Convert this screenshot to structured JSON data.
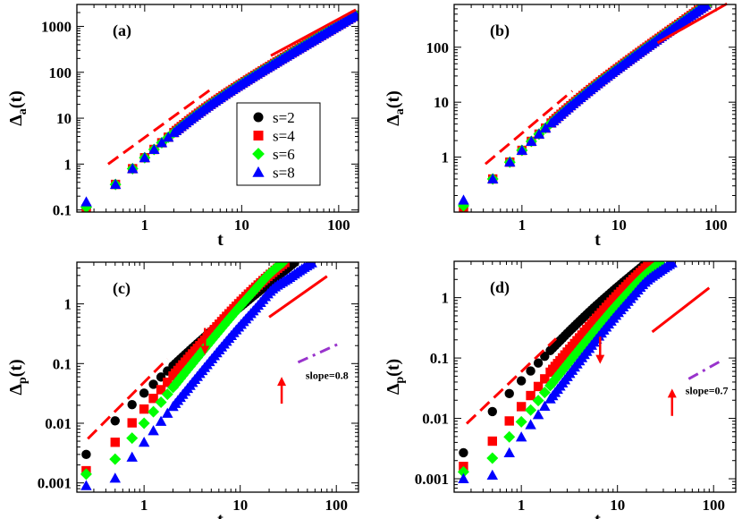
{
  "figure": {
    "legend": [
      {
        "label": "s=2",
        "color": "#000000",
        "marker": "circle"
      },
      {
        "label": "s=4",
        "color": "#ff0000",
        "marker": "square"
      },
      {
        "label": "s=6",
        "color": "#00ff00",
        "marker": "diamond"
      },
      {
        "label": "s=8",
        "color": "#0000ff",
        "marker": "triangle"
      }
    ],
    "guide_color": "#ff0000",
    "slope_color": "#9933cc"
  },
  "chart_data": [
    {
      "type": "scatter",
      "panel_label": "(a)",
      "title": "",
      "xlabel": "t",
      "ylabel_main": "Δ",
      "ylabel_sub": "a",
      "ylabel_tail": "(t)",
      "xscale": "log",
      "yscale": "log",
      "xlim": [
        0.2,
        160
      ],
      "ylim": [
        0.09,
        3000
      ],
      "xticks": [
        1,
        10,
        100
      ],
      "xtick_labels": [
        "1",
        "10",
        "100"
      ],
      "yticks": [
        0.1,
        1,
        10,
        100,
        1000
      ],
      "ytick_labels": [
        "0.1",
        "1",
        "10",
        "100",
        "1000"
      ],
      "legend_position": "center-right",
      "series": [
        {
          "name": "s=2",
          "gen": "act",
          "a": 1.48,
          "b": 2.0,
          "tc": 3.0,
          "offset": 0.0
        },
        {
          "name": "s=4",
          "gen": "act",
          "a": 1.48,
          "b": 2.0,
          "tc": 3.0,
          "offset": 0.0
        },
        {
          "name": "s=6",
          "gen": "act",
          "a": 1.48,
          "b": 2.0,
          "tc": 3.0,
          "offset": 0.0
        },
        {
          "name": "s=8",
          "gen": "act",
          "a": 1.48,
          "b": 2.0,
          "tc": 3.0,
          "offset": 0.0
        }
      ],
      "first_points": [
        0.105,
        0.105,
        0.115,
        0.15
      ],
      "guides": [
        {
          "kind": "dashed",
          "x": [
            0.42,
            5.0
          ],
          "y": [
            1.0,
            45
          ]
        },
        {
          "kind": "solid",
          "x": [
            20,
            150
          ],
          "y": [
            230,
            2300
          ]
        }
      ]
    },
    {
      "type": "scatter",
      "panel_label": "(b)",
      "title": "",
      "xlabel": "t",
      "ylabel_main": "Δ",
      "ylabel_sub": "a",
      "ylabel_tail": "(t)",
      "xscale": "log",
      "yscale": "log",
      "xlim": [
        0.2,
        160
      ],
      "ylim": [
        0.1,
        600
      ],
      "xticks": [
        1,
        10,
        100
      ],
      "xtick_labels": [
        "1",
        "10",
        "100"
      ],
      "yticks": [
        1,
        10,
        100
      ],
      "ytick_labels": [
        "1",
        "10",
        "100"
      ],
      "series": [
        {
          "name": "s=2",
          "gen": "act",
          "a": 1.4,
          "b": 1.78,
          "tc": 3.0,
          "offset": 0.0
        },
        {
          "name": "s=4",
          "gen": "act",
          "a": 1.4,
          "b": 1.78,
          "tc": 3.0,
          "offset": 0.0
        },
        {
          "name": "s=6",
          "gen": "act",
          "a": 1.4,
          "b": 1.78,
          "tc": 3.0,
          "offset": 0.0
        },
        {
          "name": "s=8",
          "gen": "act",
          "a": 1.4,
          "b": 1.78,
          "tc": 3.0,
          "offset": 0.0
        }
      ],
      "first_points": [
        0.12,
        0.12,
        0.13,
        0.165
      ],
      "guides": [
        {
          "kind": "dashed",
          "x": [
            0.42,
            3.3
          ],
          "y": [
            0.75,
            16
          ]
        },
        {
          "kind": "solid",
          "x": [
            25,
            130
          ],
          "y": [
            120,
            620
          ]
        }
      ]
    },
    {
      "type": "scatter",
      "panel_label": "(c)",
      "title": "",
      "xlabel": "t",
      "ylabel_main": "Δ",
      "ylabel_sub": "p",
      "ylabel_tail": "(t)",
      "xscale": "log",
      "yscale": "log",
      "xlim": [
        0.2,
        170
      ],
      "ylim": [
        0.0007,
        5
      ],
      "xticks": [
        1,
        10,
        100
      ],
      "xtick_labels": [
        "1",
        "10",
        "100"
      ],
      "yticks": [
        0.001,
        0.01,
        0.1,
        1
      ],
      "ytick_labels": [
        "0.001",
        "0.01",
        "0.1",
        "1"
      ],
      "series": [
        {
          "name": "s=2",
          "gen": "pass",
          "t0": 0.25,
          "v0": 0.003,
          "v1": 0.011,
          "a1": 1.55,
          "a2": 1.3,
          "tc": 4.0,
          "bump": 0
        },
        {
          "name": "s=4",
          "gen": "pass",
          "t0": 0.25,
          "v0": 0.0016,
          "v1": 0.0048,
          "a1": 1.85,
          "a2": 1.1,
          "tc": 15.0,
          "bump": 0
        },
        {
          "name": "s=6",
          "gen": "pass",
          "t0": 0.25,
          "v0": 0.0014,
          "v1": 0.0025,
          "a1": 2.0,
          "a2": 1.05,
          "tc": 22.0,
          "bump": 0.05
        },
        {
          "name": "s=8",
          "gen": "pass",
          "t0": 0.25,
          "v0": 0.0009,
          "v1": 0.0012,
          "a1": 2.0,
          "a2": 0.8,
          "tc": 24.0,
          "bump": 0.12
        }
      ],
      "guides": [
        {
          "kind": "dashed",
          "x": [
            0.26,
            1.75
          ],
          "y": [
            0.0055,
            0.12
          ]
        },
        {
          "kind": "solid",
          "x": [
            20,
            80
          ],
          "y": [
            0.6,
            2.9
          ]
        },
        {
          "kind": "dashdot",
          "x": [
            40,
            110
          ],
          "y": [
            0.105,
            0.22
          ]
        }
      ],
      "arrows": [
        {
          "direction": "down",
          "x": 4.3,
          "tip_y": 0.14,
          "length_decades": 0.45
        },
        {
          "direction": "up",
          "x": 27,
          "tip_y": 0.06,
          "length_decades": 0.45
        }
      ],
      "annotation": {
        "text": "slope=0.8",
        "x": 80,
        "y": 0.055
      }
    },
    {
      "type": "scatter",
      "panel_label": "(d)",
      "title": "",
      "xlabel": "t",
      "ylabel_main": "Δ",
      "ylabel_sub": "p",
      "ylabel_tail": "(t)",
      "xscale": "log",
      "yscale": "log",
      "xlim": [
        0.2,
        170
      ],
      "ylim": [
        0.0006,
        4
      ],
      "xticks": [
        1,
        10,
        100
      ],
      "xtick_labels": [
        "1",
        "10",
        "100"
      ],
      "yticks": [
        0.001,
        0.01,
        0.1,
        1
      ],
      "ytick_labels": [
        "0.001",
        "0.01",
        "0.1",
        "1"
      ],
      "series": [
        {
          "name": "s=2",
          "gen": "pass",
          "t0": 0.25,
          "v0": 0.0027,
          "v1": 0.013,
          "a1": 1.7,
          "a2": 1.27,
          "tc": 5.0,
          "bump": 0
        },
        {
          "name": "s=4",
          "gen": "pass",
          "t0": 0.25,
          "v0": 0.0016,
          "v1": 0.0042,
          "a1": 1.9,
          "a2": 1.12,
          "tc": 16.0,
          "bump": 0
        },
        {
          "name": "s=6",
          "gen": "pass",
          "t0": 0.25,
          "v0": 0.0013,
          "v1": 0.0022,
          "a1": 2.0,
          "a2": 0.9,
          "tc": 20.0,
          "bump": 0.03
        },
        {
          "name": "s=8",
          "gen": "pass",
          "t0": 0.25,
          "v0": 0.001,
          "v1": 0.00115,
          "a1": 2.1,
          "a2": 0.7,
          "tc": 22.0,
          "bump": 0.08
        }
      ],
      "guides": [
        {
          "kind": "dashed",
          "x": [
            0.27,
            2.3
          ],
          "y": [
            0.0082,
            0.21
          ]
        },
        {
          "kind": "solid",
          "x": [
            23,
            90
          ],
          "y": [
            0.27,
            1.45
          ]
        },
        {
          "kind": "dashdot",
          "x": [
            55,
            120
          ],
          "y": [
            0.045,
            0.09
          ]
        }
      ],
      "arrows": [
        {
          "direction": "down",
          "x": 6.6,
          "tip_y": 0.08,
          "length_decades": 0.45
        },
        {
          "direction": "up",
          "x": 37,
          "tip_y": 0.031,
          "length_decades": 0.45
        }
      ],
      "annotation": {
        "text": "slope=0.7",
        "x": 85,
        "y": 0.025
      }
    }
  ]
}
